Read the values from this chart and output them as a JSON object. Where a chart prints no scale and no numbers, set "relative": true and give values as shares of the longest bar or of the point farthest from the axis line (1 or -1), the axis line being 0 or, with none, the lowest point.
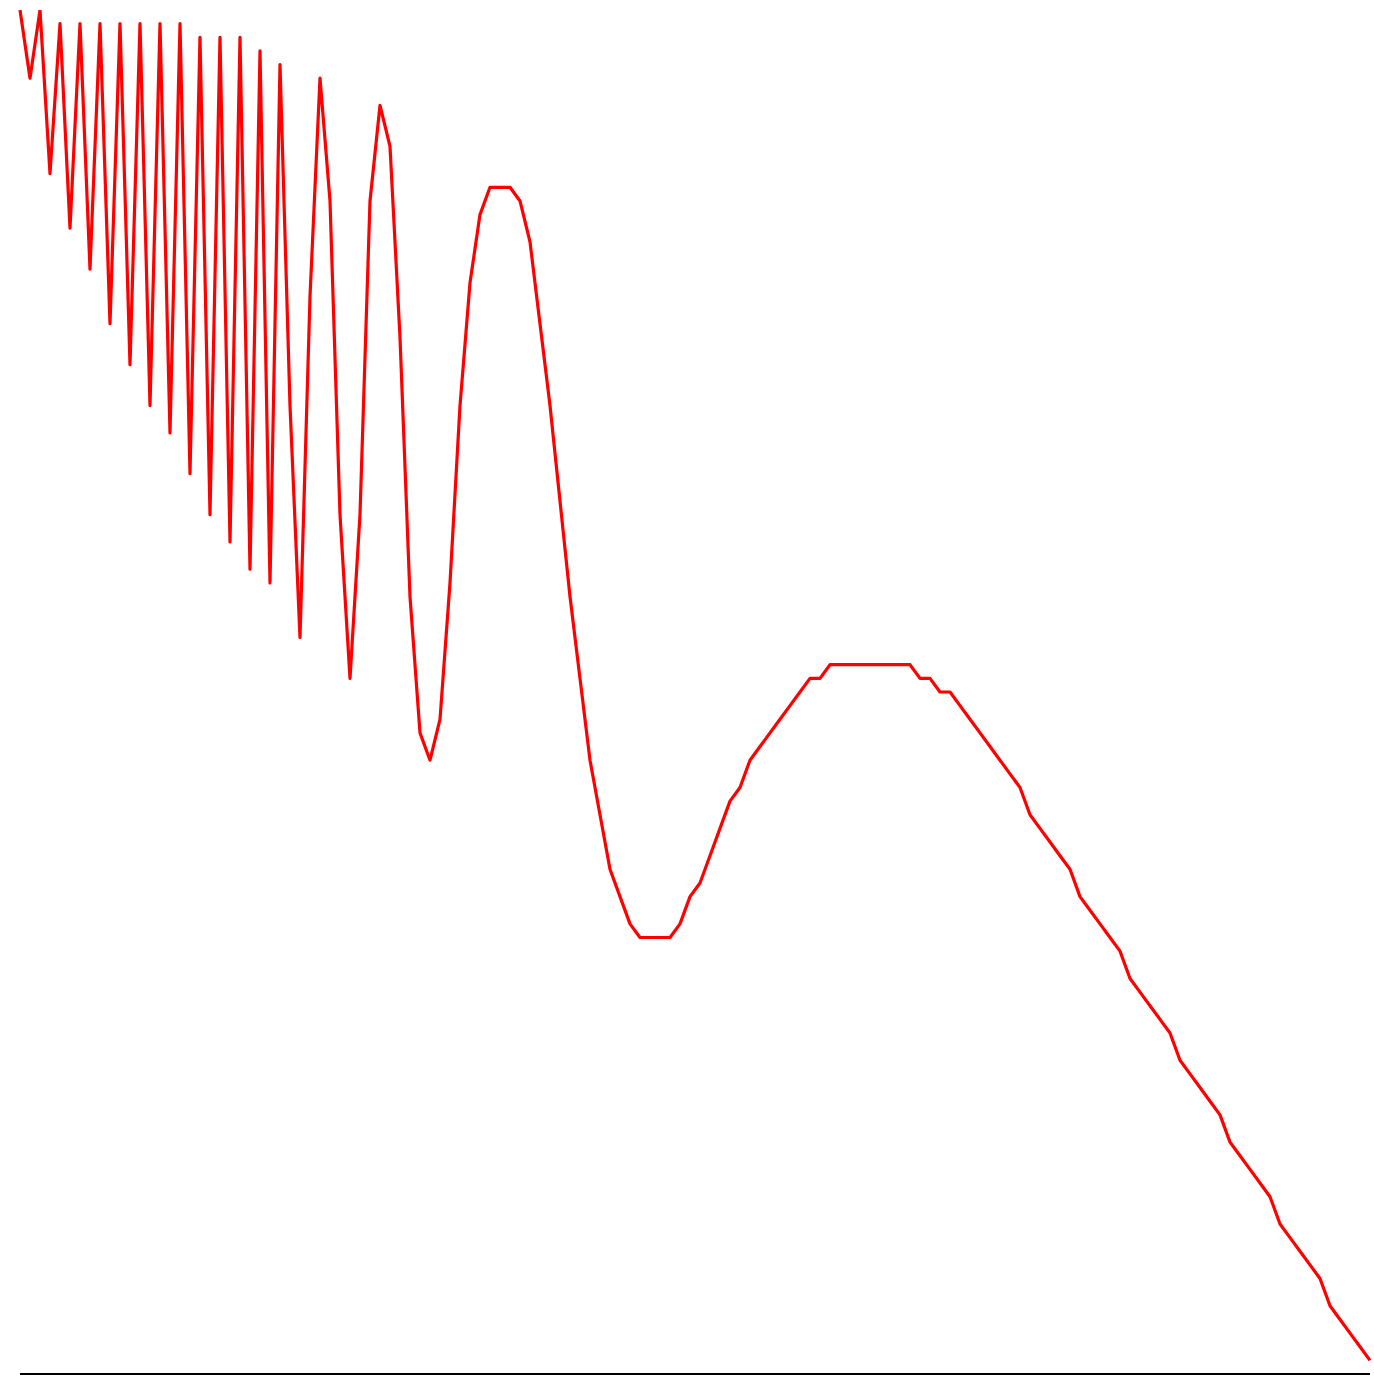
{
  "chart_data": {
    "type": "line",
    "relative": true,
    "categories": [
      null,
      null,
      null,
      null,
      null,
      null,
      null,
      null,
      null,
      null,
      null,
      null,
      null,
      null,
      null,
      null,
      null,
      null,
      null,
      null,
      null,
      null,
      null,
      null,
      null,
      null,
      null,
      null,
      null,
      null,
      null,
      null,
      null,
      null,
      null,
      null,
      null,
      null,
      null,
      null,
      null,
      null,
      null,
      null,
      null,
      null,
      null,
      null,
      null,
      null,
      null,
      null,
      null,
      null,
      null,
      null,
      null,
      null,
      null,
      null,
      null,
      null,
      null,
      null,
      null,
      null,
      null,
      null,
      null,
      null,
      null,
      null,
      null,
      null,
      null,
      null,
      null,
      null,
      null,
      null,
      null,
      null,
      null,
      null,
      null,
      null,
      null,
      null,
      null,
      null,
      null,
      null,
      null,
      null,
      null,
      null,
      null,
      null,
      null,
      null,
      null,
      null,
      null,
      null,
      null,
      null,
      null,
      null,
      null,
      null,
      null,
      null,
      null,
      null,
      null,
      null,
      null,
      null,
      null,
      null,
      null,
      null,
      null,
      null,
      null,
      null,
      null,
      null,
      null,
      null,
      null,
      null,
      null,
      null,
      null,
      null
    ],
    "series": [
      {
        "color": "#ff0000",
        "values": [
          1.0,
          0.95,
          1.0,
          0.88,
          0.99,
          0.84,
          0.99,
          0.81,
          0.99,
          0.77,
          0.99,
          0.74,
          0.99,
          0.71,
          0.99,
          0.69,
          0.99,
          0.66,
          0.98,
          0.63,
          0.98,
          0.61,
          0.98,
          0.59,
          0.97,
          0.58,
          0.96,
          0.71,
          0.54,
          0.79,
          0.95,
          0.86,
          0.63,
          0.51,
          0.63,
          0.86,
          0.93,
          0.9,
          0.76,
          0.57,
          0.47,
          0.45,
          0.48,
          0.58,
          0.71,
          0.8,
          0.85,
          0.87,
          0.87,
          0.87,
          0.86,
          0.83,
          0.77,
          0.71,
          0.64,
          0.57,
          0.51,
          0.45,
          0.41,
          0.37,
          0.35,
          0.33,
          0.32,
          0.32,
          0.32,
          0.32,
          0.33,
          0.35,
          0.36,
          0.38,
          0.4,
          0.42,
          0.43,
          0.45,
          0.46,
          0.47,
          0.48,
          0.49,
          0.5,
          0.51,
          0.51,
          0.52,
          0.52,
          0.52,
          0.52,
          0.52,
          0.52,
          0.52,
          0.52,
          0.52,
          0.51,
          0.51,
          0.5,
          0.5,
          0.49,
          0.48,
          0.47,
          0.46,
          0.45,
          0.44,
          0.43,
          0.41,
          0.4,
          0.39,
          0.38,
          0.37,
          0.35,
          0.34,
          0.33,
          0.32,
          0.31,
          0.29,
          0.28,
          0.27,
          0.26,
          0.25,
          0.23,
          0.22,
          0.21,
          0.2,
          0.19,
          0.17,
          0.16,
          0.15,
          0.14,
          0.13,
          0.11,
          0.1,
          0.09,
          0.08,
          0.07,
          0.05,
          0.04,
          0.03,
          0.02,
          0.01
        ]
      }
    ]
  }
}
